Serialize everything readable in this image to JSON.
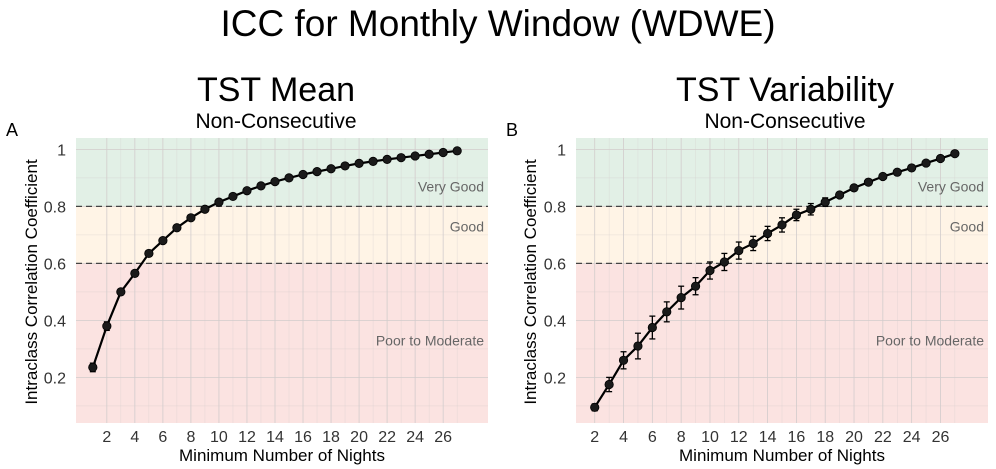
{
  "figure": {
    "suptitle": "ICC for Monthly Window (WDWE)"
  },
  "colors": {
    "very_good_bg": "#e2f0e6",
    "good_bg": "#fff4e6",
    "poor_bg": "#fbe3e1",
    "grid": "#d2cccc",
    "line": "#000000",
    "threshold": "#444444"
  },
  "chart_data": [
    {
      "panel_label": "A",
      "type": "line",
      "title": "TST Mean",
      "subtitle": "Non-Consecutive",
      "xlabel": "Minimum Number of Nights",
      "ylabel": "Intraclass Correlation Coefficient",
      "xlim": [
        -0.2,
        29.2
      ],
      "ylim": [
        0.04,
        1.04
      ],
      "xticks": [
        2,
        4,
        6,
        8,
        10,
        12,
        14,
        16,
        18,
        20,
        22,
        24,
        26
      ],
      "yticks": [
        0.2,
        0.4,
        0.6,
        0.8,
        1.0
      ],
      "ytick_labels": [
        "0.2",
        "0.4",
        "0.6",
        "0.8",
        "1"
      ],
      "thresholds": [
        0.6,
        0.8
      ],
      "zones": [
        {
          "label": "Very Good",
          "from": 0.8,
          "to": 1.04,
          "color": "#e2f0e6",
          "label_y": 0.87
        },
        {
          "label": "Good",
          "from": 0.6,
          "to": 0.8,
          "color": "#fff4e6",
          "label_y": 0.73
        },
        {
          "label": "Poor to Moderate",
          "from": 0.04,
          "to": 0.6,
          "color": "#fbe3e1",
          "label_y": 0.33
        }
      ],
      "grid": true,
      "series": [
        {
          "x": [
            1,
            2,
            3,
            4,
            5,
            6,
            7,
            8,
            9,
            10,
            11,
            12,
            13,
            14,
            15,
            16,
            17,
            18,
            19,
            20,
            21,
            22,
            23,
            24,
            25,
            26,
            27
          ],
          "y": [
            0.235,
            0.38,
            0.5,
            0.565,
            0.635,
            0.68,
            0.725,
            0.76,
            0.79,
            0.815,
            0.835,
            0.855,
            0.872,
            0.887,
            0.9,
            0.912,
            0.922,
            0.932,
            0.942,
            0.951,
            0.958,
            0.965,
            0.971,
            0.977,
            0.983,
            0.989,
            0.995
          ],
          "err": [
            0.015,
            0.015,
            0.01,
            0.01,
            0.01,
            0.008,
            0.008,
            0.007,
            0.006,
            0.006,
            0.005,
            0.005,
            0.005,
            0.004,
            0.004,
            0.004,
            0.004,
            0.004,
            0.004,
            0.004,
            0.004,
            0.004,
            0.004,
            0.004,
            0.004,
            0.004,
            0.004
          ]
        }
      ]
    },
    {
      "panel_label": "B",
      "type": "line",
      "title": "TST Variability",
      "subtitle": "Non-Consecutive",
      "xlabel": "Minimum Number of Nights",
      "ylabel": "Intraclass Correlation Coefficient",
      "xlim": [
        0.7,
        29.3
      ],
      "ylim": [
        0.04,
        1.04
      ],
      "xticks": [
        2,
        4,
        6,
        8,
        10,
        12,
        14,
        16,
        18,
        20,
        22,
        24,
        26
      ],
      "yticks": [
        0.2,
        0.4,
        0.6,
        0.8,
        1.0
      ],
      "ytick_labels": [
        "0.2",
        "0.4",
        "0.6",
        "0.8",
        "1"
      ],
      "thresholds": [
        0.6,
        0.8
      ],
      "zones": [
        {
          "label": "Very Good",
          "from": 0.8,
          "to": 1.04,
          "color": "#e2f0e6",
          "label_y": 0.87
        },
        {
          "label": "Good",
          "from": 0.6,
          "to": 0.8,
          "color": "#fff4e6",
          "label_y": 0.73
        },
        {
          "label": "Poor to Moderate",
          "from": 0.04,
          "to": 0.6,
          "color": "#fbe3e1",
          "label_y": 0.33
        }
      ],
      "grid": true,
      "series": [
        {
          "x": [
            2,
            3,
            4,
            5,
            6,
            7,
            8,
            9,
            10,
            11,
            12,
            13,
            14,
            15,
            16,
            17,
            18,
            19,
            20,
            21,
            22,
            23,
            24,
            25,
            26,
            27
          ],
          "y": [
            0.095,
            0.175,
            0.26,
            0.31,
            0.375,
            0.43,
            0.48,
            0.52,
            0.575,
            0.605,
            0.645,
            0.67,
            0.705,
            0.735,
            0.77,
            0.79,
            0.815,
            0.84,
            0.865,
            0.885,
            0.905,
            0.92,
            0.935,
            0.952,
            0.968,
            0.985
          ],
          "err": [
            0.012,
            0.025,
            0.03,
            0.045,
            0.04,
            0.035,
            0.04,
            0.03,
            0.03,
            0.03,
            0.03,
            0.025,
            0.025,
            0.025,
            0.02,
            0.02,
            0.015,
            0.01,
            0.01,
            0.01,
            0.008,
            0.008,
            0.007,
            0.006,
            0.005,
            0.005
          ]
        }
      ]
    }
  ]
}
